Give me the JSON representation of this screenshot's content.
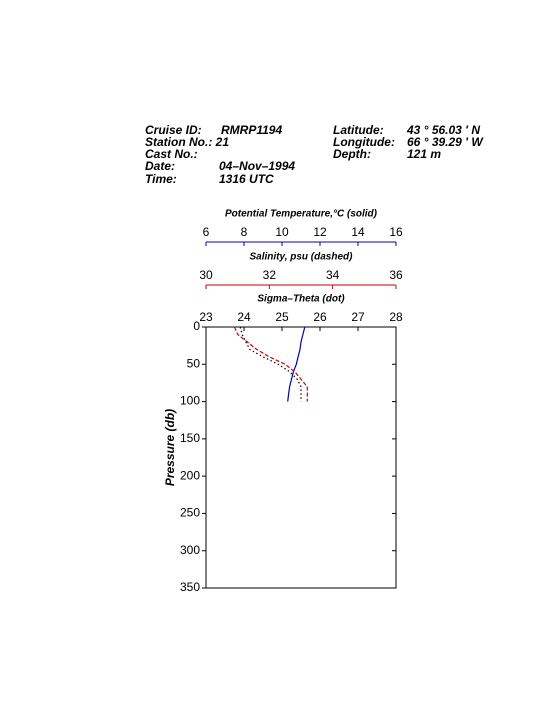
{
  "chart_data": {
    "type": "line",
    "header": [
      {
        "label": "Cruise ID:",
        "value": "RMRP1194"
      },
      {
        "label": "Station No.: 21"
      },
      {
        "label": "Cast No.:"
      },
      {
        "label": "Date:",
        "value": "04–Nov–1994"
      },
      {
        "label": "Time:",
        "value": "1316 UTC"
      },
      {
        "label": "Latitude:",
        "value": "43 °  56.03 '  N"
      },
      {
        "label": "Longitude:",
        "value": "66 °  39.29 '  W"
      },
      {
        "label": "Depth:",
        "value": "121 m"
      }
    ],
    "y_label": "Pressure (db)",
    "y": [
      0,
      10,
      20,
      30,
      40,
      50,
      60,
      70,
      80,
      90,
      100
    ],
    "ylim": [
      0,
      350
    ],
    "yticks": [
      0,
      50,
      100,
      150,
      200,
      250,
      300,
      350
    ],
    "y_reversed": true,
    "series": [
      {
        "name": "Potential Temperature,°C (solid)",
        "color": "#0000aa",
        "style": "solid",
        "xlim": [
          6,
          16
        ],
        "xticks": [
          6,
          8,
          10,
          12,
          14,
          16
        ],
        "values": [
          11.2,
          11.1,
          11.0,
          10.95,
          10.85,
          10.75,
          10.6,
          10.5,
          10.4,
          10.35,
          10.3
        ]
      },
      {
        "name": "Salinity, psu  (dashed)",
        "color": "#cc0000",
        "style": "dashed",
        "xlim": [
          30,
          36
        ],
        "xticks": [
          30,
          32,
          34,
          36
        ],
        "values": [
          30.9,
          31.0,
          31.3,
          31.6,
          32.0,
          32.5,
          32.8,
          33.0,
          33.2,
          33.2,
          33.2
        ]
      },
      {
        "name": "Sigma–Theta (dot)",
        "color": "#000000",
        "style": "dotted",
        "xlim": [
          23,
          28
        ],
        "xticks": [
          23,
          24,
          25,
          26,
          27,
          28
        ],
        "values": [
          23.9,
          23.95,
          24.05,
          24.15,
          24.5,
          24.9,
          25.2,
          25.4,
          25.5,
          25.5,
          25.5
        ]
      }
    ]
  }
}
